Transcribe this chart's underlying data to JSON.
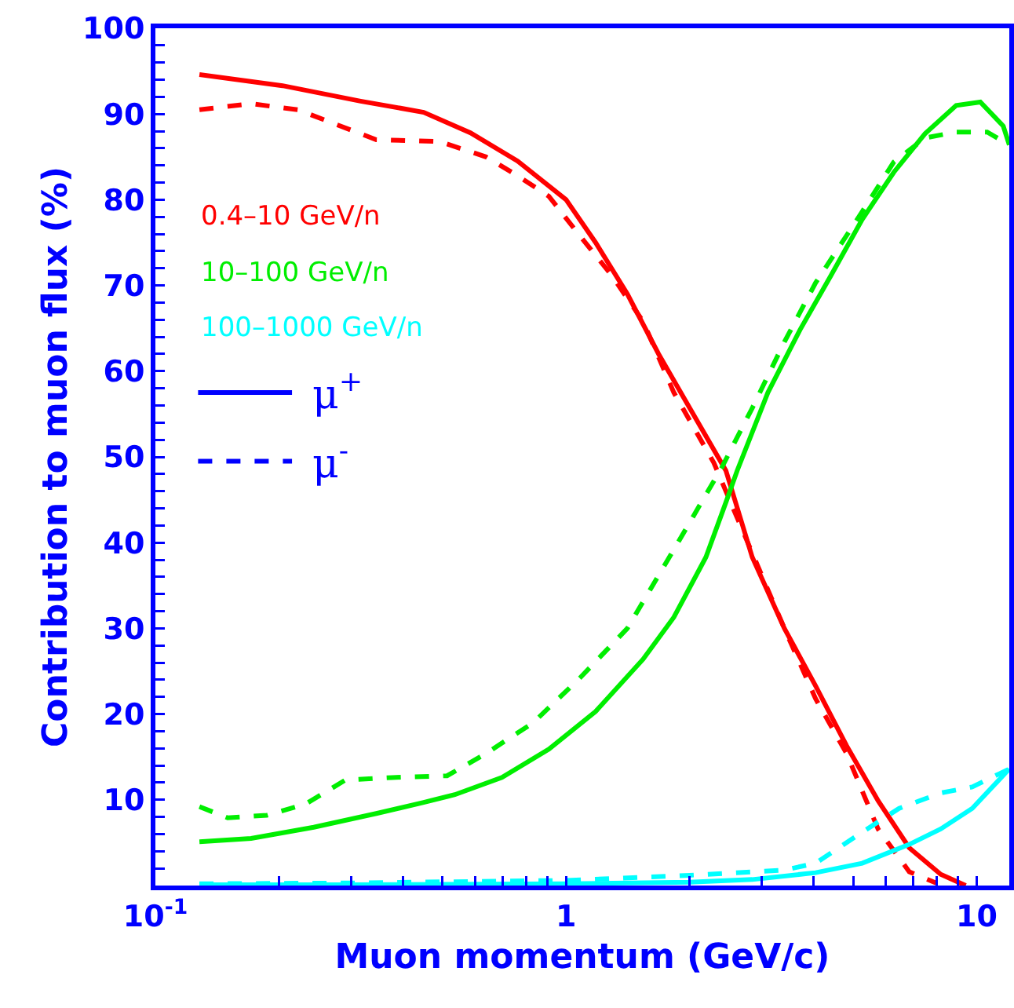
{
  "chart_data": {
    "type": "line",
    "xlabel": "Muon momentum (GeV/c)",
    "ylabel": "Contribution to muon flux (%)",
    "log": "x",
    "xlim": [
      0.1,
      12
    ],
    "ylim": [
      0,
      100
    ],
    "xticks": [
      {
        "value": 0.1,
        "label": "10$^{-1}$"
      },
      {
        "value": 0.2,
        "label": null
      },
      {
        "value": 0.3,
        "label": null
      },
      {
        "value": 0.4,
        "label": null
      },
      {
        "value": 0.5,
        "label": null
      },
      {
        "value": 0.6,
        "label": null
      },
      {
        "value": 0.7,
        "label": null
      },
      {
        "value": 0.8,
        "label": null
      },
      {
        "value": 0.9,
        "label": null
      },
      1,
      {
        "value": 2,
        "label": null
      },
      {
        "value": 3,
        "label": null
      },
      {
        "value": 4,
        "label": null
      },
      {
        "value": 5,
        "label": null
      },
      {
        "value": 6,
        "label": null
      },
      {
        "value": 7,
        "label": null
      },
      {
        "value": 8,
        "label": null
      },
      {
        "value": 9,
        "label": null
      },
      10
    ],
    "yticks": [
      {
        "value": 0,
        "label": null
      },
      {
        "value": 2,
        "label": null
      },
      {
        "value": 4,
        "label": null
      },
      {
        "value": 6,
        "label": null
      },
      {
        "value": 8,
        "label": null
      },
      10,
      {
        "value": 12,
        "label": null
      },
      {
        "value": 14,
        "label": null
      },
      {
        "value": 16,
        "label": null
      },
      {
        "value": 18,
        "label": null
      },
      20,
      {
        "value": 22,
        "label": null
      },
      {
        "value": 24,
        "label": null
      },
      {
        "value": 26,
        "label": null
      },
      {
        "value": 28,
        "label": null
      },
      30,
      {
        "value": 32,
        "label": null
      },
      {
        "value": 34,
        "label": null
      },
      {
        "value": 36,
        "label": null
      },
      {
        "value": 38,
        "label": null
      },
      40,
      {
        "value": 42,
        "label": null
      },
      {
        "value": 44,
        "label": null
      },
      {
        "value": 46,
        "label": null
      },
      {
        "value": 48,
        "label": null
      },
      50,
      {
        "value": 52,
        "label": null
      },
      {
        "value": 54,
        "label": null
      },
      {
        "value": 56,
        "label": null
      },
      {
        "value": 58,
        "label": null
      },
      60,
      {
        "value": 62,
        "label": null
      },
      {
        "value": 64,
        "label": null
      },
      {
        "value": 66,
        "label": null
      },
      {
        "value": 68,
        "label": null
      },
      70,
      {
        "value": 72,
        "label": null
      },
      {
        "value": 74,
        "label": null
      },
      {
        "value": 76,
        "label": null
      },
      {
        "value": 78,
        "label": null
      },
      80,
      {
        "value": 82,
        "label": null
      },
      {
        "value": 84,
        "label": null
      },
      {
        "value": 86,
        "label": null
      },
      {
        "value": 88,
        "label": null
      },
      90,
      {
        "value": 92,
        "label": null
      },
      {
        "value": 94,
        "label": null
      },
      {
        "value": 96,
        "label": null
      },
      {
        "value": 98,
        "label": null
      },
      100
    ],
    "grid": false,
    "legend": "top left",
    "marker": "none",
    "annotations": [
      "μ$^{+}$",
      "μ$^{-}$"
    ],
    "series": [
      {
        "name": "0.4–10 GeV/n",
        "color": "#ff0000",
        "line_style": "solid",
        "x": [
          0.128,
          0.204,
          0.316,
          0.45,
          0.585,
          0.762,
          1.0,
          1.18,
          1.41,
          1.68,
          2.0,
          2.45,
          2.84,
          3.4,
          4.05,
          4.82,
          5.75,
          6.85,
          8.17,
          9.4
        ],
        "values": [
          94.6,
          93.3,
          91.5,
          90.2,
          87.8,
          84.5,
          80,
          75,
          69,
          62,
          55.7,
          48.4,
          38.3,
          30,
          23.3,
          16.3,
          9.9,
          4.4,
          1.3,
          0
        ]
      },
      {
        "color": "#ff0000",
        "line_style": "dashed",
        "x": [
          0.128,
          0.171,
          0.222,
          0.345,
          0.491,
          0.638,
          0.762,
          0.908,
          1.08,
          1.29,
          1.54,
          1.83,
          2.29,
          2.61,
          3.4,
          4.05,
          4.82,
          5.75,
          6.85,
          7.96
        ],
        "values": [
          90.5,
          91.2,
          90.5,
          87,
          86.8,
          85,
          82.8,
          80.4,
          75.8,
          71.2,
          65.8,
          57.5,
          49.3,
          42.9,
          30,
          21.8,
          15.4,
          6.6,
          1.6,
          0.3
        ]
      },
      {
        "name": "10–100 GeV/n",
        "color": "#00ee00",
        "line_style": "solid",
        "x": [
          0.128,
          0.171,
          0.243,
          0.345,
          0.45,
          0.536,
          0.698,
          0.908,
          1.18,
          1.54,
          1.83,
          2.19,
          2.45,
          2.61,
          3.1,
          3.71,
          4.42,
          5.26,
          6.28,
          7.48,
          8.91,
          10.2,
          11.6,
          12
        ],
        "values": [
          5.1,
          5.5,
          6.8,
          8.4,
          9.7,
          10.6,
          12.6,
          15.9,
          20.3,
          26.4,
          31.3,
          38.3,
          44.7,
          48.4,
          57.5,
          64.8,
          71.2,
          77.7,
          83.2,
          87.7,
          91,
          91.4,
          88.6,
          86.4
        ]
      },
      {
        "color": "#00ee00",
        "line_style": "dashed",
        "x": [
          0.128,
          0.15,
          0.187,
          0.232,
          0.29,
          0.377,
          0.513,
          0.638,
          0.832,
          1.08,
          1.41,
          1.83,
          2.39,
          2.84,
          3.4,
          4.05,
          5.26,
          6.28,
          7.48,
          8.91,
          10.6,
          12
        ],
        "values": [
          9.2,
          7.9,
          8.2,
          9.5,
          12.3,
          12.6,
          12.8,
          15.4,
          19,
          24.2,
          30,
          39.2,
          48.7,
          55.7,
          63.4,
          70.3,
          78.6,
          84.4,
          87.2,
          87.9,
          87.9,
          86.4
        ]
      },
      {
        "name": "100–1000 GeV/n",
        "color": "#00ffff",
        "line_style": "solid",
        "x": [
          0.128,
          0.3,
          1.0,
          2.0,
          2.84,
          4.05,
          5.26,
          6.85,
          8.17,
          9.75,
          12
        ],
        "values": [
          0.1,
          0.1,
          0.2,
          0.4,
          0.7,
          1.5,
          2.6,
          4.8,
          6.6,
          9,
          13.6
        ]
      },
      {
        "color": "#00ffff",
        "line_style": "dashed",
        "x": [
          0.128,
          0.3,
          1.0,
          2.0,
          3.4,
          4.05,
          5.41,
          6.47,
          8.17,
          9.75,
          12
        ],
        "values": [
          0.2,
          0.3,
          0.6,
          1.2,
          1.8,
          2.6,
          6.6,
          9,
          10.8,
          11.5,
          13.6
        ]
      }
    ]
  }
}
